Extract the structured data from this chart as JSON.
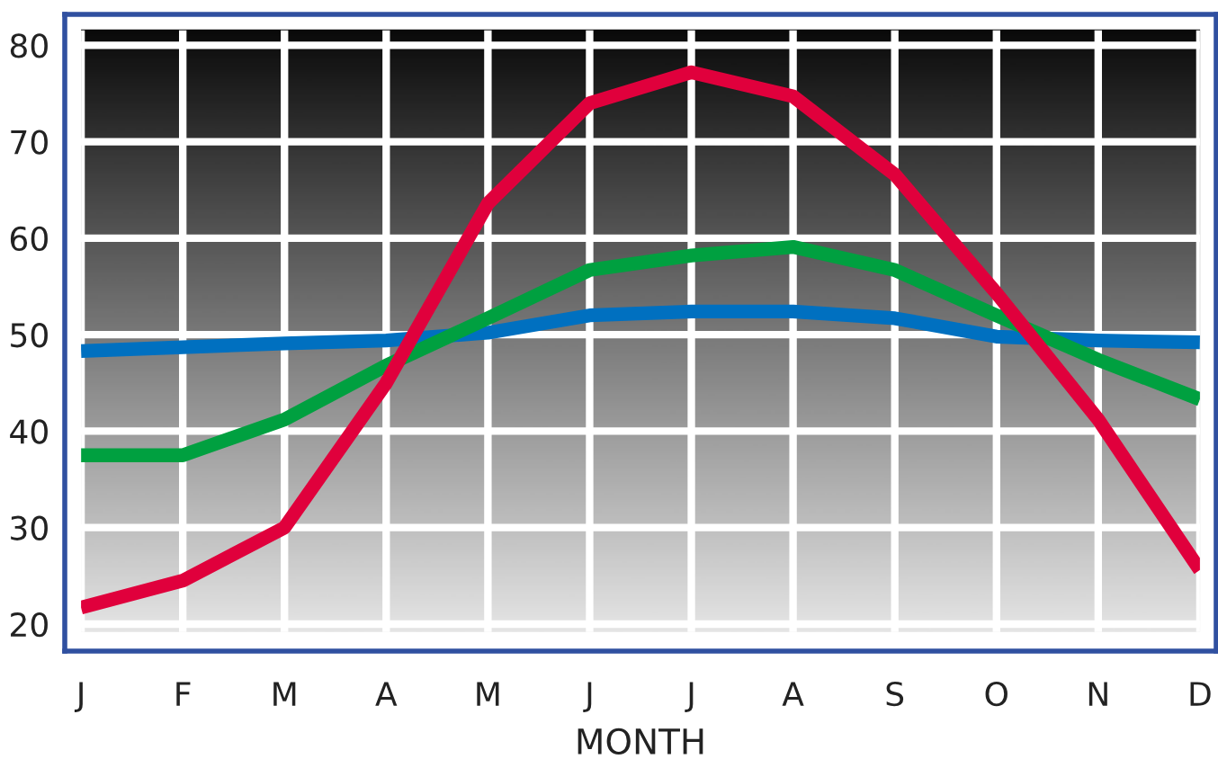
{
  "chart_data": {
    "type": "line",
    "xlabel": "MONTH",
    "categories": [
      "J",
      "F",
      "M",
      "A",
      "M",
      "J",
      "J",
      "A",
      "S",
      "O",
      "N",
      "D"
    ],
    "series": [
      {
        "color": "#0070c0",
        "values": [
          48.3,
          48.7,
          49.1,
          49.4,
          50.2,
          52,
          52.4,
          52.4,
          51.7,
          49.8,
          49.4,
          49.2
        ]
      },
      {
        "color": "#00a040",
        "values": [
          37.5,
          37.5,
          41.2,
          46.8,
          51.7,
          56.7,
          58.2,
          59.1,
          56.7,
          52,
          47.4,
          43.3
        ]
      },
      {
        "color": "#e0003c",
        "values": [
          21.7,
          24.5,
          30,
          45,
          63.6,
          74,
          77.2,
          74.7,
          66.6,
          54.3,
          41.2,
          25.6
        ]
      }
    ],
    "ylim": [
      17.2,
      83.2
    ],
    "yticks": [
      20,
      30,
      40,
      50,
      60,
      70,
      80
    ],
    "grid": true,
    "legend": false,
    "marker": "none",
    "line_style": "solid"
  }
}
